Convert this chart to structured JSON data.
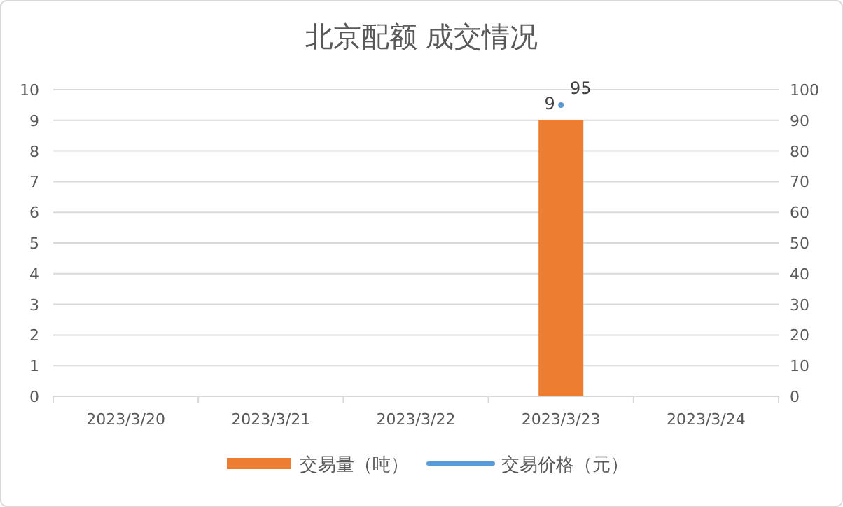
{
  "chart_data": {
    "type": "bar",
    "title": "北京配额 成交情况",
    "categories": [
      "2023/3/20",
      "2023/3/21",
      "2023/3/22",
      "2023/3/23",
      "2023/3/24"
    ],
    "series": [
      {
        "name": "交易量（吨）",
        "color": "#ed7d31",
        "values": [
          null,
          null,
          null,
          9,
          null
        ]
      },
      {
        "name": "交易价格（元）",
        "type": "line",
        "axis": "y2",
        "color": "#5b9bd5",
        "marker": "circle",
        "values": [
          null,
          null,
          null,
          95,
          null
        ]
      }
    ],
    "ylim": [
      0,
      10
    ],
    "yticks": [
      0,
      1,
      2,
      3,
      4,
      5,
      6,
      7,
      8,
      9,
      10
    ],
    "y2lim": [
      0,
      100
    ],
    "y2ticks": [
      0,
      10,
      20,
      30,
      40,
      50,
      60,
      70,
      80,
      90,
      100
    ],
    "grid": "y",
    "legend": "bottom",
    "data_labels": true
  }
}
